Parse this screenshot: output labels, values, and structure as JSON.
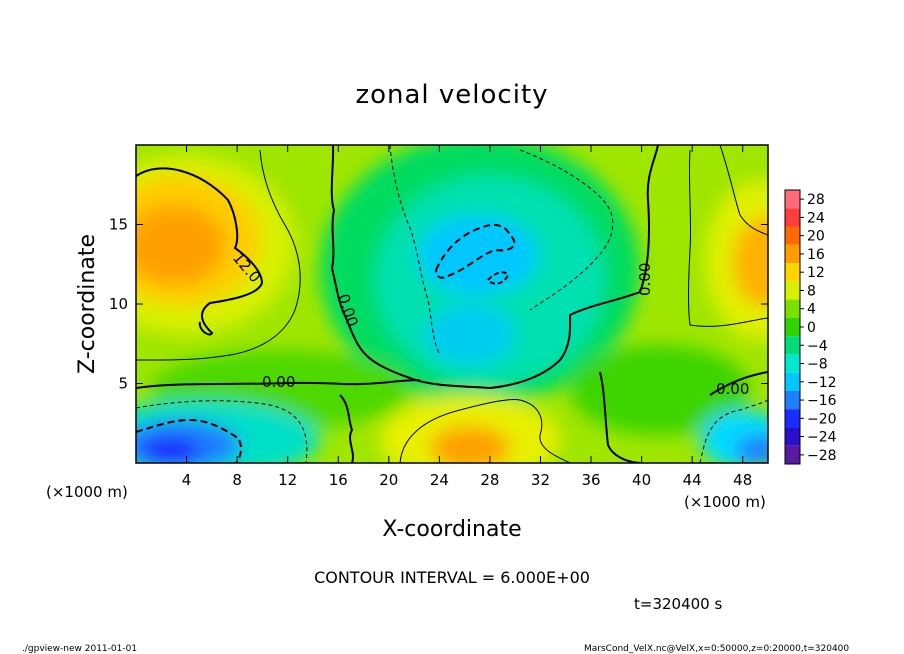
{
  "chart_data": {
    "type": "heatmap",
    "title": "zonal velocity",
    "xlabel": "X-coordinate",
    "ylabel": "Z-coordinate",
    "x_unit_note": "(×1000 m)",
    "y_unit_note": "(×1000 m)",
    "xlim": [
      0,
      50
    ],
    "ylim": [
      0,
      20
    ],
    "x_ticks": [
      4,
      8,
      12,
      16,
      20,
      24,
      28,
      32,
      36,
      40,
      44,
      48
    ],
    "y_ticks": [
      5,
      10,
      15
    ],
    "colorbar": {
      "levels": [
        28,
        24,
        20,
        16,
        12,
        8,
        4,
        0,
        -4,
        -8,
        -12,
        -16,
        -20,
        -24,
        -28
      ],
      "tick_labels": [
        "28",
        "24",
        "20",
        "16",
        "12",
        "8",
        "4",
        "0",
        "−4",
        "−8",
        "−12",
        "−16",
        "−20",
        "−24",
        "−28"
      ],
      "colors": [
        "#ff6b7a",
        "#ff3d3d",
        "#ff6a00",
        "#ff9c00",
        "#ffd400",
        "#d6f000",
        "#7be000",
        "#2ed400",
        "#00dc78",
        "#00e8d0",
        "#00c8ff",
        "#1f7dff",
        "#1a2cff",
        "#2a10c8",
        "#5a1aa0"
      ]
    },
    "features": [
      {
        "x": 3,
        "z": 13.5,
        "value": 16,
        "kind": "positive maximum"
      },
      {
        "x": 49,
        "z": 12.5,
        "value": 15,
        "kind": "positive maximum"
      },
      {
        "x": 26,
        "z": 1.2,
        "value": 16,
        "kind": "positive maximum"
      },
      {
        "x": 26,
        "z": 13,
        "value": -14,
        "kind": "negative minimum"
      },
      {
        "x": 4,
        "z": 1,
        "value": -16,
        "kind": "negative minimum"
      },
      {
        "x": 48,
        "z": 1.5,
        "value": -12,
        "kind": "negative minimum"
      }
    ],
    "contour_labels": [
      {
        "text": "12.0",
        "x": 8,
        "z": 13
      },
      {
        "text": "0.00",
        "x": 17,
        "z": 8
      },
      {
        "text": "0.00",
        "x": 40.5,
        "z": 12
      },
      {
        "text": "0.00",
        "x": 11,
        "z": 5.3
      },
      {
        "text": "0.00",
        "x": 46,
        "z": 4.8
      }
    ],
    "contour_interval_text": "CONTOUR INTERVAL = 6.000E+00",
    "time_text": "t=320400 s"
  },
  "footer": {
    "left": "./gpview-new  2011-01-01",
    "right": "MarsCond_VelX.nc@VelX,x=0:50000,z=0:20000,t=320400"
  }
}
